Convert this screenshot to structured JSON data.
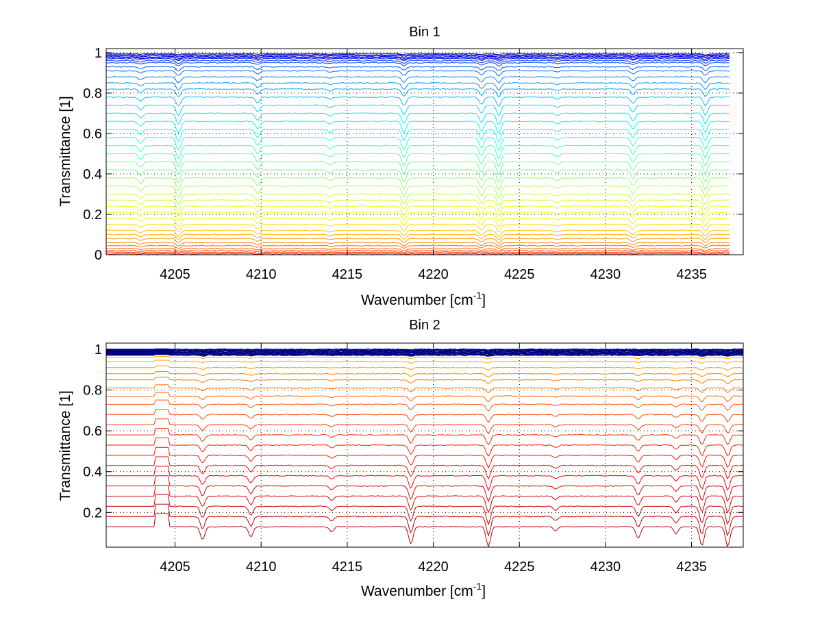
{
  "chart_data": [
    {
      "type": "line",
      "title": "Bin 1",
      "xlabel_main": "Wavenumber [cm",
      "xlabel_sup": "-1",
      "xlabel_end": "]",
      "ylabel": "Transmittance [1]",
      "xlim": [
        4201,
        4238
      ],
      "ylim": [
        0,
        1.02
      ],
      "xticks": [
        4205,
        4210,
        4215,
        4220,
        4225,
        4230,
        4235
      ],
      "yticks": [
        0,
        0.2,
        0.4,
        0.6,
        0.8,
        1
      ],
      "ytick_labels": [
        "0",
        "0.2",
        "0.4",
        "0.6",
        "0.8",
        "1"
      ],
      "grid": true,
      "series_count": 40,
      "series_levels": [
        0.995,
        0.99,
        0.985,
        0.98,
        0.975,
        0.97,
        0.96,
        0.95,
        0.93,
        0.91,
        0.88,
        0.85,
        0.82,
        0.78,
        0.74,
        0.7,
        0.66,
        0.62,
        0.58,
        0.54,
        0.5,
        0.46,
        0.42,
        0.38,
        0.34,
        0.3,
        0.27,
        0.24,
        0.21,
        0.18,
        0.15,
        0.12,
        0.1,
        0.08,
        0.06,
        0.045,
        0.03,
        0.02,
        0.012,
        0.005
      ],
      "absorption_lines": [
        4203,
        4205.2,
        4209.8,
        4214,
        4218.3,
        4222.8,
        4223.8,
        4227.2,
        4231.6,
        4235.8
      ],
      "x_end": 4237.2
    },
    {
      "type": "line",
      "title": "Bin 2",
      "xlabel_main": "Wavenumber [cm",
      "xlabel_sup": "-1",
      "xlabel_end": "]",
      "ylabel": "Transmittance [1]",
      "xlim": [
        4201,
        4238
      ],
      "ylim": [
        0.03,
        1.03
      ],
      "xticks": [
        4205,
        4210,
        4215,
        4220,
        4225,
        4230,
        4235
      ],
      "yticks": [
        0.2,
        0.4,
        0.6,
        0.8,
        1
      ],
      "ytick_labels": [
        "0.2",
        "0.4",
        "0.6",
        "0.8",
        "1"
      ],
      "grid": true,
      "series_count": 36,
      "series_levels": [
        1.0,
        0.998,
        0.996,
        0.994,
        0.992,
        0.99,
        0.988,
        0.986,
        0.984,
        0.982,
        0.98,
        0.978,
        0.976,
        0.974,
        0.972,
        0.97,
        0.96,
        0.94,
        0.91,
        0.88,
        0.85,
        0.81,
        0.77,
        0.73,
        0.68,
        0.63,
        0.58,
        0.53,
        0.48,
        0.43,
        0.38,
        0.33,
        0.28,
        0.23,
        0.18,
        0.13
      ],
      "absorption_lines": [
        4204.3,
        4206.6,
        4209.4,
        4214.1,
        4218.7,
        4223.2,
        4227.1,
        4231.9,
        4234.1,
        4235.6,
        4237.1
      ],
      "x_end": 4238
    }
  ]
}
